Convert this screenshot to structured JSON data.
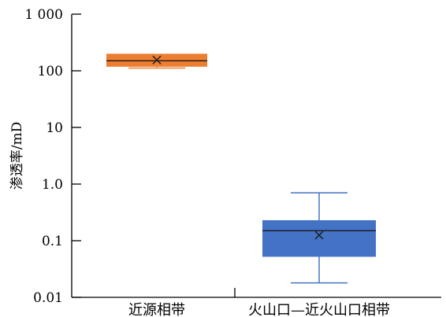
{
  "chart_data": {
    "type": "box",
    "ylabel": "渗透率/mD",
    "yscale": "log",
    "ylim": [
      0.01,
      1000
    ],
    "yticks": [
      {
        "value": 1000,
        "label": "1 000"
      },
      {
        "value": 100,
        "label": "100"
      },
      {
        "value": 10,
        "label": "10"
      },
      {
        "value": 1,
        "label": "1.0"
      },
      {
        "value": 0.1,
        "label": "0.1"
      },
      {
        "value": 0.01,
        "label": "0.01"
      }
    ],
    "categories": [
      "近源相带",
      "火山口—近火山口相带"
    ],
    "boxes": [
      {
        "category": "近源相带",
        "min": 112,
        "q1": 118,
        "median": 150,
        "q3": 200,
        "max": 200,
        "mean": 155,
        "color": "#ED7D31"
      },
      {
        "category": "火山口—近火山口相带",
        "min": 0.018,
        "q1": 0.052,
        "median": 0.15,
        "q3": 0.23,
        "max": 0.7,
        "mean": 0.125,
        "color": "#4472C4"
      }
    ]
  }
}
